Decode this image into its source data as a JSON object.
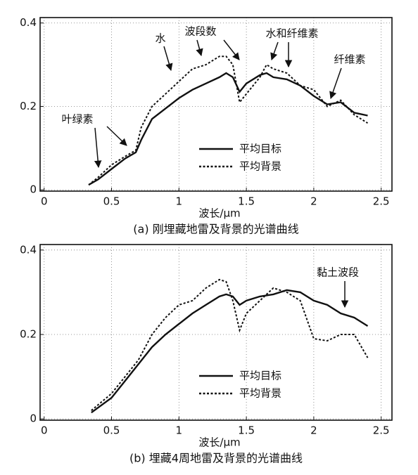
{
  "chart_data": [
    {
      "type": "line",
      "title": "(a) 刚埋藏地雷及背景的光谱曲线",
      "xlabel": "波长/μm",
      "x": [
        0.33,
        0.4,
        0.5,
        0.6,
        0.68,
        0.72,
        0.8,
        0.9,
        1.0,
        1.1,
        1.2,
        1.3,
        1.35,
        1.4,
        1.45,
        1.5,
        1.6,
        1.65,
        1.7,
        1.8,
        1.9,
        2.0,
        2.1,
        2.2,
        2.3,
        2.4
      ],
      "series": [
        {
          "name": "平均目标",
          "color": "#111111",
          "style": "solid",
          "values": [
            0.012,
            0.025,
            0.05,
            0.075,
            0.09,
            0.12,
            0.17,
            0.195,
            0.22,
            0.24,
            0.255,
            0.27,
            0.28,
            0.27,
            0.235,
            0.255,
            0.275,
            0.28,
            0.27,
            0.265,
            0.25,
            0.225,
            0.205,
            0.21,
            0.185,
            0.178
          ]
        },
        {
          "name": "平均背景",
          "color": "#111111",
          "style": "dashed",
          "values": [
            0.012,
            0.03,
            0.06,
            0.08,
            0.095,
            0.15,
            0.2,
            0.23,
            0.26,
            0.29,
            0.3,
            0.32,
            0.32,
            0.3,
            0.21,
            0.23,
            0.27,
            0.3,
            0.29,
            0.28,
            0.25,
            0.24,
            0.2,
            0.215,
            0.18,
            0.16
          ]
        }
      ],
      "annotations": [
        "叶绿素",
        "水",
        "波段数",
        "水和纤维素",
        "纤维素"
      ],
      "xlim": [
        -0.03,
        2.58
      ],
      "ylim": [
        -0.003,
        0.413
      ],
      "xticks": [
        0,
        0.5,
        1,
        1.5,
        2,
        2.5
      ],
      "yticks": [
        0,
        0.2,
        0.4
      ],
      "grid": true
    },
    {
      "type": "line",
      "title": "(b) 埋藏4周地雷及背景的光谱曲线",
      "xlabel": "波长/μm",
      "x": [
        0.35,
        0.5,
        0.6,
        0.7,
        0.8,
        0.9,
        1.0,
        1.1,
        1.2,
        1.3,
        1.35,
        1.4,
        1.45,
        1.5,
        1.6,
        1.7,
        1.8,
        1.9,
        2.0,
        2.1,
        2.2,
        2.3,
        2.4
      ],
      "series": [
        {
          "name": "平均目标",
          "color": "#111111",
          "style": "solid",
          "values": [
            0.015,
            0.05,
            0.09,
            0.13,
            0.17,
            0.2,
            0.225,
            0.25,
            0.27,
            0.29,
            0.295,
            0.29,
            0.27,
            0.28,
            0.29,
            0.295,
            0.305,
            0.3,
            0.28,
            0.27,
            0.25,
            0.24,
            0.22
          ]
        },
        {
          "name": "平均背景",
          "color": "#111111",
          "style": "dashed",
          "values": [
            0.02,
            0.06,
            0.1,
            0.14,
            0.2,
            0.24,
            0.27,
            0.28,
            0.31,
            0.33,
            0.325,
            0.28,
            0.21,
            0.25,
            0.28,
            0.31,
            0.3,
            0.28,
            0.19,
            0.185,
            0.2,
            0.2,
            0.145
          ]
        }
      ],
      "annotations": [
        "黏土波段"
      ],
      "xlim": [
        -0.03,
        2.58
      ],
      "ylim": [
        -0.003,
        0.413
      ],
      "xticks": [
        0,
        0.5,
        1,
        1.5,
        2,
        2.5
      ],
      "yticks": [
        0,
        0.2,
        0.4
      ],
      "grid": true
    }
  ]
}
